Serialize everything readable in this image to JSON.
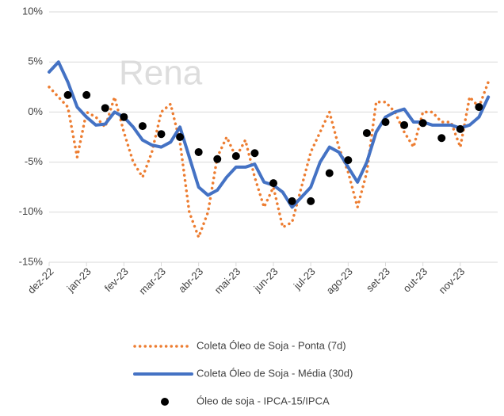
{
  "chart_data": {
    "type": "line",
    "watermark": "Rena",
    "categories": [
      "dez-22",
      null,
      null,
      null,
      "jan-23",
      null,
      null,
      null,
      "fev-23",
      null,
      null,
      null,
      "mar-23",
      null,
      null,
      null,
      "abr-23",
      null,
      null,
      null,
      "mai-23",
      null,
      null,
      null,
      "jun-23",
      null,
      null,
      null,
      "jul-23",
      null,
      null,
      null,
      "ago-23",
      null,
      null,
      null,
      "set-23",
      null,
      null,
      null,
      "out-23",
      null,
      null,
      null,
      "nov-23",
      null,
      null,
      null
    ],
    "series": [
      {
        "name": "Coleta Óleo de Soja - Ponta (7d)",
        "color": "#ed7d31",
        "style": "dotted",
        "values": [
          2.5,
          1.5,
          0.5,
          -4.5,
          0.0,
          -0.5,
          -1.5,
          1.5,
          -2.0,
          -5.0,
          -6.5,
          -4.0,
          0.0,
          0.8,
          -3.0,
          -10,
          -12.5,
          -10,
          -4.5,
          -2.5,
          -4.5,
          -2.8,
          -6.5,
          -9.5,
          -7.5,
          -11.5,
          -11.0,
          -7.5,
          -4.0,
          -2.0,
          0.0,
          -3.5,
          -6.0,
          -9.5,
          -6.0,
          1.0,
          1.0,
          0.0,
          -2.0,
          -3.5,
          0.0,
          0.0,
          -1.0,
          -1.0,
          -3.5,
          1.5,
          0.5,
          3.0
        ]
      },
      {
        "name": "Coleta Óleo de Soja - Média (30d)",
        "color": "#4472c4",
        "style": "solid",
        "values": [
          4.0,
          5.0,
          3.0,
          0.5,
          -0.5,
          -1.3,
          -1.2,
          0.0,
          -0.5,
          -1.5,
          -2.8,
          -3.3,
          -3.5,
          -3.0,
          -1.5,
          -4.5,
          -7.5,
          -8.3,
          -7.8,
          -6.5,
          -5.5,
          -5.5,
          -5.2,
          -7.0,
          -7.3,
          -8.0,
          -9.5,
          -8.5,
          -7.5,
          -5.0,
          -3.5,
          -4.0,
          -5.5,
          -7.0,
          -5.0,
          -2.0,
          -0.5,
          0.0,
          0.3,
          -1.0,
          -1.0,
          -1.3,
          -1.3,
          -1.3,
          -1.6,
          -1.3,
          -0.5,
          1.5
        ]
      },
      {
        "name": "Óleo de soja  - IPCA-15/IPCA",
        "color": "#000000",
        "style": "markers",
        "values": [
          null,
          null,
          1.7,
          null,
          1.7,
          null,
          0.4,
          null,
          -0.5,
          null,
          -1.4,
          null,
          -2.2,
          null,
          -2.5,
          null,
          -4.0,
          null,
          -4.7,
          null,
          -4.4,
          null,
          -4.1,
          null,
          -7.1,
          null,
          -8.9,
          null,
          -8.9,
          null,
          -6.1,
          null,
          -4.8,
          null,
          -2.1,
          null,
          -1.0,
          null,
          -1.3,
          null,
          -1.1,
          null,
          -2.6,
          null,
          -1.7,
          null,
          0.5,
          null
        ]
      }
    ],
    "ylim": [
      -15,
      10
    ],
    "yticks": [
      {
        "value": -15,
        "label": "-15%"
      },
      {
        "value": -10,
        "label": "-10%"
      },
      {
        "value": -5,
        "label": "-5%"
      },
      {
        "value": 0,
        "label": "0%"
      },
      {
        "value": 5,
        "label": "5%"
      },
      {
        "value": 10,
        "label": "10%"
      }
    ],
    "grid": true,
    "legend": "bottom"
  }
}
